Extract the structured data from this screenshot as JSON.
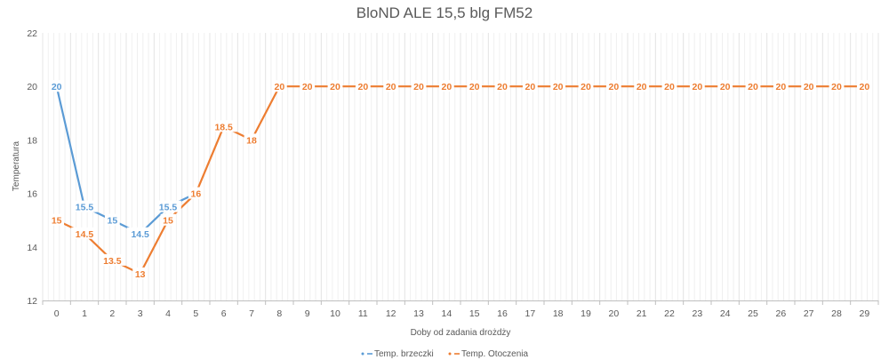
{
  "chart_data": {
    "type": "line",
    "title": "BloND ALE 15,5 blg FM52",
    "xlabel": "Doby od zadania drożdży",
    "ylabel": "Temperatura",
    "ylim": [
      12,
      22
    ],
    "yticks": [
      12,
      14,
      16,
      18,
      20,
      22
    ],
    "x": [
      0,
      1,
      2,
      3,
      4,
      5,
      6,
      7,
      8,
      9,
      10,
      11,
      12,
      13,
      14,
      15,
      16,
      17,
      18,
      19,
      20,
      21,
      22,
      23,
      24,
      25,
      26,
      27,
      28,
      29
    ],
    "grid": "vertical-minor",
    "legend_position": "bottom",
    "series": [
      {
        "name": "Temp. brzeczki",
        "color": "#5b9bd5",
        "x": [
          0,
          1,
          2,
          3,
          4,
          5
        ],
        "values": [
          20,
          15.5,
          15,
          14.5,
          15.5,
          16
        ],
        "labels": [
          "20",
          "15.5",
          "15",
          "14.5",
          "15.5",
          ""
        ]
      },
      {
        "name": "Temp. Otoczenia",
        "color": "#ed7d31",
        "x": [
          0,
          1,
          2,
          3,
          4,
          5,
          6,
          7,
          8,
          9,
          10,
          11,
          12,
          13,
          14,
          15,
          16,
          17,
          18,
          19,
          20,
          21,
          22,
          23,
          24,
          25,
          26,
          27,
          28,
          29
        ],
        "values": [
          15,
          14.5,
          13.5,
          13,
          15,
          16,
          18.5,
          18,
          20,
          20,
          20,
          20,
          20,
          20,
          20,
          20,
          20,
          20,
          20,
          20,
          20,
          20,
          20,
          20,
          20,
          20,
          20,
          20,
          20,
          20
        ],
        "labels": [
          "15",
          "14.5",
          "13.5",
          "13",
          "15",
          "16",
          "18.5",
          "18",
          "20",
          "20",
          "20",
          "20",
          "20",
          "20",
          "20",
          "20",
          "20",
          "20",
          "20",
          "20",
          "20",
          "20",
          "20",
          "20",
          "20",
          "20",
          "20",
          "20",
          "20",
          "20"
        ]
      }
    ]
  }
}
